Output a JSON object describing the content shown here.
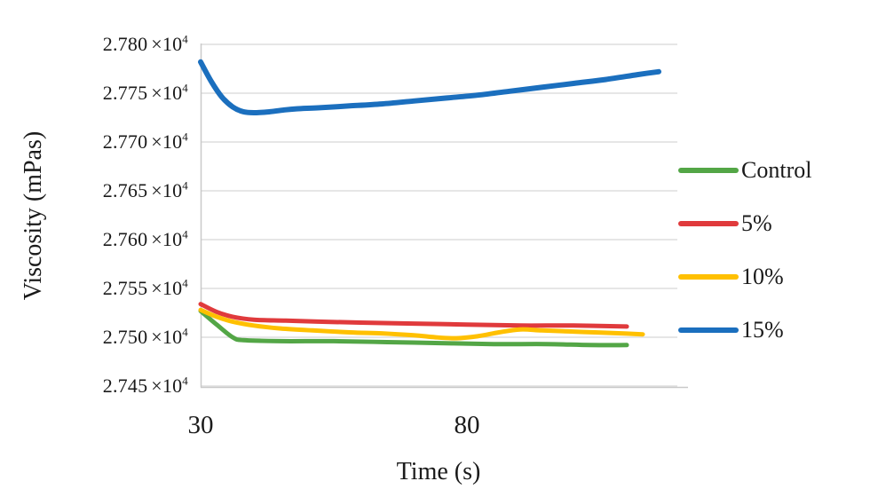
{
  "chart_data": {
    "type": "line",
    "title": "",
    "xlabel": "Time (s)",
    "ylabel": "Viscosity (mPas)",
    "grid": true,
    "legend_position": "right",
    "x_axis": {
      "ticks": [
        30,
        80
      ]
    },
    "y_axis": {
      "min": 27450,
      "max": 27800,
      "tick_suffix": "×10",
      "tick_exponent": "4",
      "ticks": [
        {
          "value": 27450,
          "label": "2.745"
        },
        {
          "value": 27500,
          "label": "2.750"
        },
        {
          "value": 27550,
          "label": "2.755"
        },
        {
          "value": 27600,
          "label": "2.760"
        },
        {
          "value": 27650,
          "label": "2.765"
        },
        {
          "value": 27700,
          "label": "2.770"
        },
        {
          "value": 27750,
          "label": "2.775"
        },
        {
          "value": 27800,
          "label": "2.780"
        }
      ]
    },
    "series": [
      {
        "name": "Control",
        "color": "#53A646",
        "points": [
          [
            30,
            27527
          ],
          [
            33,
            27513
          ],
          [
            36,
            27500
          ],
          [
            38,
            27497
          ],
          [
            45,
            27496
          ],
          [
            55,
            27496
          ],
          [
            65,
            27495
          ],
          [
            75,
            27494
          ],
          [
            85,
            27493
          ],
          [
            95,
            27493
          ],
          [
            103,
            27492
          ],
          [
            110,
            27492
          ]
        ]
      },
      {
        "name": "5%",
        "color": "#E03A3C",
        "points": [
          [
            30,
            27534
          ],
          [
            33,
            27526
          ],
          [
            36,
            27521
          ],
          [
            40,
            27518
          ],
          [
            46,
            27517
          ],
          [
            52,
            27516
          ],
          [
            60,
            27515
          ],
          [
            70,
            27514
          ],
          [
            80,
            27513
          ],
          [
            90,
            27512
          ],
          [
            100,
            27512
          ],
          [
            110,
            27511
          ]
        ]
      },
      {
        "name": "10%",
        "color": "#FFC000",
        "points": [
          [
            30,
            27528
          ],
          [
            33,
            27521
          ],
          [
            36,
            27516
          ],
          [
            40,
            27512
          ],
          [
            45,
            27509
          ],
          [
            51,
            27507
          ],
          [
            58,
            27505
          ],
          [
            64,
            27504
          ],
          [
            70,
            27502
          ],
          [
            74,
            27500
          ],
          [
            78,
            27499
          ],
          [
            82,
            27501
          ],
          [
            86,
            27505
          ],
          [
            90,
            27508
          ],
          [
            94,
            27507
          ],
          [
            99,
            27506
          ],
          [
            104,
            27505
          ],
          [
            109,
            27504
          ],
          [
            113,
            27503
          ]
        ]
      },
      {
        "name": "15%",
        "color": "#1B6FBE",
        "points": [
          [
            30,
            27782
          ],
          [
            32,
            27762
          ],
          [
            34,
            27746
          ],
          [
            36,
            27736
          ],
          [
            38,
            27731
          ],
          [
            40,
            27730
          ],
          [
            43,
            27731
          ],
          [
            46,
            27733
          ],
          [
            48,
            27734
          ],
          [
            52,
            27735
          ],
          [
            58,
            27737
          ],
          [
            64,
            27739
          ],
          [
            70,
            27742
          ],
          [
            76,
            27745
          ],
          [
            82,
            27748
          ],
          [
            88,
            27752
          ],
          [
            94,
            27756
          ],
          [
            100,
            27760
          ],
          [
            106,
            27764
          ],
          [
            112,
            27769
          ],
          [
            116,
            27772
          ]
        ]
      }
    ]
  },
  "colors": {
    "grid": "#DDDDDD",
    "axis": "#C9C9C9",
    "text": "#1A1A1A"
  }
}
